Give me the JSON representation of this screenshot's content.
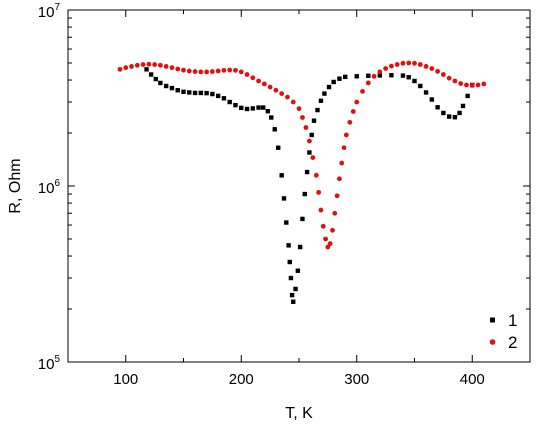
{
  "chart_data": {
    "type": "scatter",
    "xlabel": "T, K",
    "ylabel": "R, Ohm",
    "xlim": [
      50,
      450
    ],
    "ylim": [
      100000,
      10000000
    ],
    "yscale": "log",
    "x_ticks": [
      100,
      200,
      300,
      400
    ],
    "x_tick_labels": [
      "100",
      "200",
      "300",
      "400"
    ],
    "y_ticks": [
      100000,
      1000000,
      10000000
    ],
    "y_tick_labels": [
      {
        "base": "10",
        "exp": "5"
      },
      {
        "base": "10",
        "exp": "6"
      },
      {
        "base": "10",
        "exp": "7"
      }
    ],
    "legend": {
      "position": "bottom-right",
      "entries": [
        "1",
        "2"
      ]
    },
    "series": [
      {
        "name": "1",
        "color": "#000000",
        "marker": "square",
        "points": [
          [
            118,
            4600000
          ],
          [
            122,
            4300000
          ],
          [
            126,
            4050000
          ],
          [
            130,
            3850000
          ],
          [
            135,
            3700000
          ],
          [
            140,
            3600000
          ],
          [
            145,
            3500000
          ],
          [
            150,
            3430000
          ],
          [
            155,
            3400000
          ],
          [
            160,
            3380000
          ],
          [
            165,
            3380000
          ],
          [
            170,
            3370000
          ],
          [
            175,
            3330000
          ],
          [
            180,
            3250000
          ],
          [
            185,
            3150000
          ],
          [
            190,
            3000000
          ],
          [
            195,
            2880000
          ],
          [
            200,
            2780000
          ],
          [
            205,
            2740000
          ],
          [
            210,
            2760000
          ],
          [
            215,
            2790000
          ],
          [
            219,
            2790000
          ],
          [
            223,
            2660000
          ],
          [
            226,
            2450000
          ],
          [
            229,
            2100000
          ],
          [
            232,
            1650000
          ],
          [
            235,
            1150000
          ],
          [
            237,
            850000
          ],
          [
            239,
            620000
          ],
          [
            241,
            460000
          ],
          [
            242,
            370000
          ],
          [
            243,
            300000
          ],
          [
            244,
            240000
          ],
          [
            245,
            220000
          ],
          [
            247,
            260000
          ],
          [
            249,
            330000
          ],
          [
            251,
            450000
          ],
          [
            253,
            650000
          ],
          [
            255,
            900000
          ],
          [
            257,
            1200000
          ],
          [
            259,
            1550000
          ],
          [
            261,
            1950000
          ],
          [
            263,
            2350000
          ],
          [
            266,
            2700000
          ],
          [
            269,
            3050000
          ],
          [
            272,
            3350000
          ],
          [
            276,
            3650000
          ],
          [
            280,
            3900000
          ],
          [
            285,
            4070000
          ],
          [
            290,
            4170000
          ],
          [
            300,
            4200000
          ],
          [
            310,
            4230000
          ],
          [
            320,
            4250000
          ],
          [
            330,
            4260000
          ],
          [
            340,
            4240000
          ],
          [
            345,
            4150000
          ],
          [
            350,
            3950000
          ],
          [
            355,
            3700000
          ],
          [
            360,
            3400000
          ],
          [
            365,
            3100000
          ],
          [
            370,
            2800000
          ],
          [
            375,
            2600000
          ],
          [
            380,
            2480000
          ],
          [
            385,
            2460000
          ],
          [
            389,
            2600000
          ],
          [
            392,
            2850000
          ],
          [
            396,
            3250000
          ],
          [
            400,
            3750000
          ]
        ]
      },
      {
        "name": "2",
        "color": "#e01010",
        "marker": "circle",
        "points": [
          [
            95,
            4600000
          ],
          [
            100,
            4700000
          ],
          [
            105,
            4780000
          ],
          [
            110,
            4850000
          ],
          [
            115,
            4900000
          ],
          [
            120,
            4920000
          ],
          [
            125,
            4900000
          ],
          [
            130,
            4850000
          ],
          [
            135,
            4780000
          ],
          [
            140,
            4700000
          ],
          [
            145,
            4620000
          ],
          [
            150,
            4550000
          ],
          [
            155,
            4500000
          ],
          [
            160,
            4470000
          ],
          [
            165,
            4450000
          ],
          [
            170,
            4450000
          ],
          [
            175,
            4470000
          ],
          [
            180,
            4500000
          ],
          [
            185,
            4540000
          ],
          [
            190,
            4560000
          ],
          [
            195,
            4540000
          ],
          [
            200,
            4450000
          ],
          [
            205,
            4300000
          ],
          [
            210,
            4120000
          ],
          [
            215,
            3950000
          ],
          [
            220,
            3800000
          ],
          [
            225,
            3650000
          ],
          [
            230,
            3500000
          ],
          [
            235,
            3350000
          ],
          [
            240,
            3200000
          ],
          [
            245,
            3000000
          ],
          [
            250,
            2750000
          ],
          [
            253,
            2450000
          ],
          [
            256,
            2150000
          ],
          [
            259,
            1800000
          ],
          [
            262,
            1450000
          ],
          [
            265,
            1150000
          ],
          [
            267,
            920000
          ],
          [
            269,
            730000
          ],
          [
            271,
            590000
          ],
          [
            273,
            500000
          ],
          [
            275,
            450000
          ],
          [
            277,
            470000
          ],
          [
            279,
            560000
          ],
          [
            281,
            700000
          ],
          [
            283,
            880000
          ],
          [
            285,
            1100000
          ],
          [
            287,
            1350000
          ],
          [
            289,
            1650000
          ],
          [
            291,
            1950000
          ],
          [
            294,
            2300000
          ],
          [
            297,
            2650000
          ],
          [
            300,
            3000000
          ],
          [
            305,
            3450000
          ],
          [
            310,
            3850000
          ],
          [
            315,
            4200000
          ],
          [
            320,
            4450000
          ],
          [
            325,
            4650000
          ],
          [
            330,
            4800000
          ],
          [
            335,
            4900000
          ],
          [
            340,
            4980000
          ],
          [
            345,
            5000000
          ],
          [
            350,
            4980000
          ],
          [
            355,
            4900000
          ],
          [
            360,
            4780000
          ],
          [
            365,
            4650000
          ],
          [
            370,
            4480000
          ],
          [
            375,
            4300000
          ],
          [
            380,
            4100000
          ],
          [
            385,
            3950000
          ],
          [
            390,
            3820000
          ],
          [
            395,
            3750000
          ],
          [
            400,
            3730000
          ],
          [
            405,
            3750000
          ],
          [
            410,
            3800000
          ]
        ]
      }
    ]
  }
}
